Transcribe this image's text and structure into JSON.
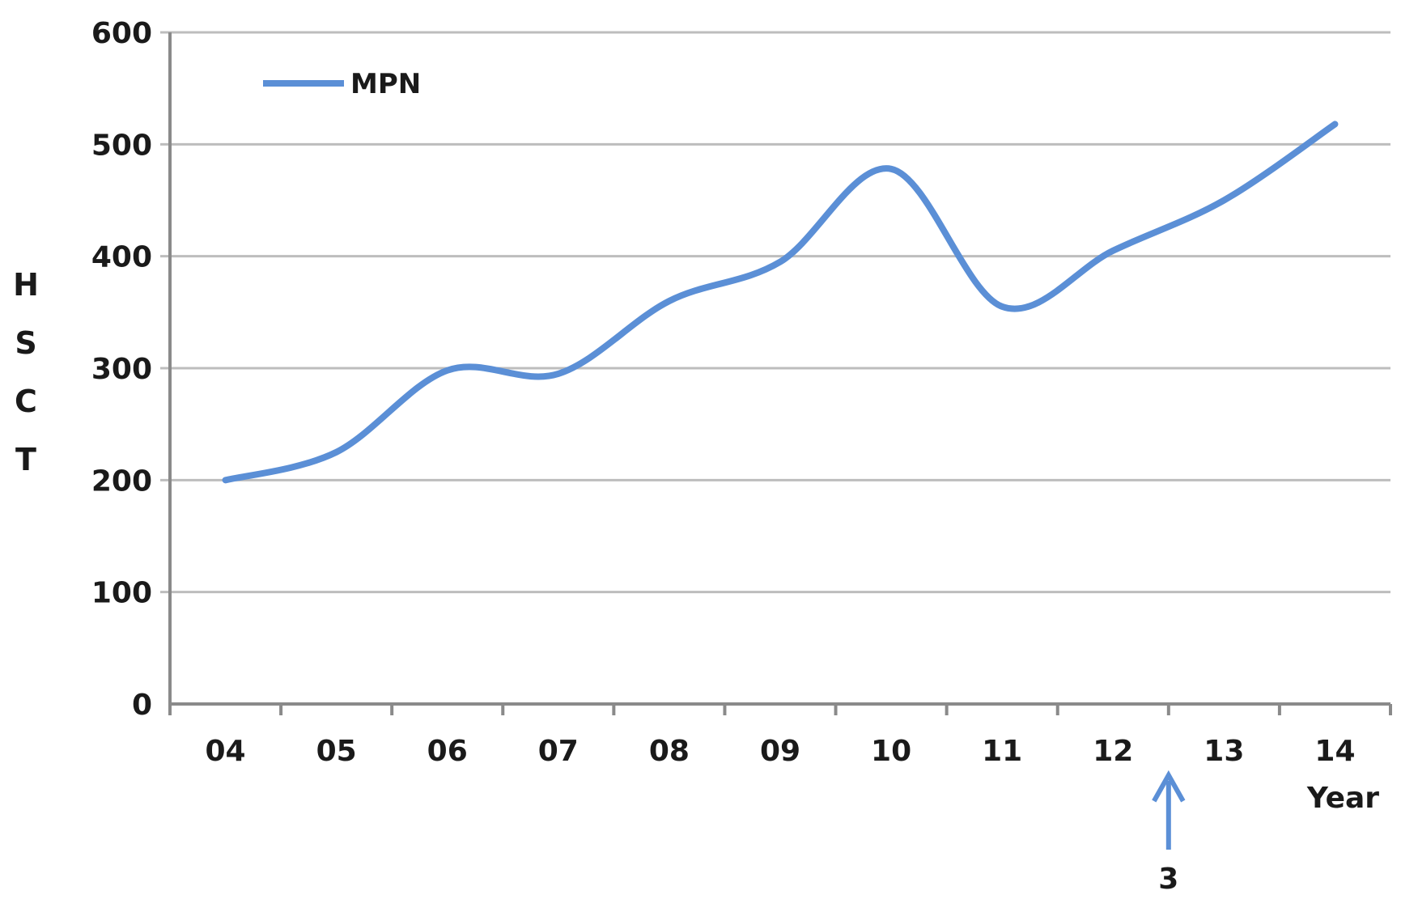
{
  "chart_data": {
    "type": "line",
    "categories": [
      "04",
      "05",
      "06",
      "07",
      "08",
      "09",
      "10",
      "11",
      "12",
      "13",
      "14"
    ],
    "series": [
      {
        "name": "MPN",
        "values": [
          200,
          225,
          298,
          295,
          360,
          395,
          478,
          355,
          405,
          450,
          518
        ],
        "color": "#5b8fd6"
      }
    ],
    "xlabel": "Year",
    "ylabel": "HSCT",
    "ylim": [
      0,
      600
    ],
    "yticks": [
      0,
      100,
      200,
      300,
      400,
      500,
      600
    ],
    "grid": true,
    "legend_position": "top-left",
    "annotation": {
      "label": "3",
      "between": [
        "12",
        "13"
      ],
      "icon": "up-arrow-icon",
      "color": "#5b8fd6"
    }
  }
}
